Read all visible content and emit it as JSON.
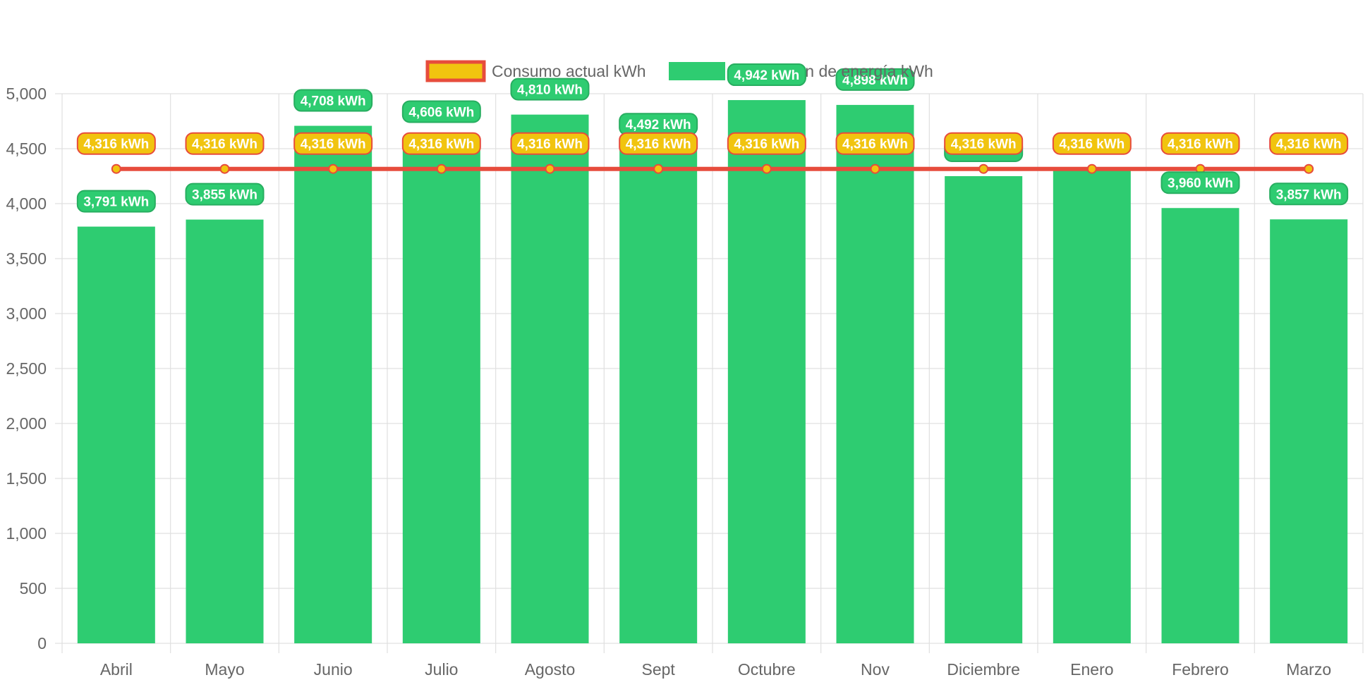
{
  "chart_data": {
    "type": "bar",
    "categories": [
      "Abril",
      "Mayo",
      "Junio",
      "Julio",
      "Agosto",
      "Sept",
      "Octubre",
      "Nov",
      "Diciembre",
      "Enero",
      "Febrero",
      "Marzo"
    ],
    "series": [
      {
        "name": "Consumo actual kWh",
        "type": "line",
        "values": [
          4316,
          4316,
          4316,
          4316,
          4316,
          4316,
          4316,
          4316,
          4316,
          4316,
          4316,
          4316
        ],
        "labels": [
          "4,316 kWh",
          "4,316 kWh",
          "4,316 kWh",
          "4,316 kWh",
          "4,316 kWh",
          "4,316 kWh",
          "4,316 kWh",
          "4,316 kWh",
          "4,316 kWh",
          "4,316 kWh",
          "4,316 kWh",
          "4,316 kWh"
        ]
      },
      {
        "name": "Producción de energía kWh",
        "type": "bar",
        "values": [
          3791,
          3855,
          4708,
          4606,
          4810,
          4492,
          4942,
          4898,
          4250,
          4316,
          3960,
          3857
        ],
        "labels": [
          "3,791 kWh",
          "3,855 kWh",
          "4,708 kWh",
          "4,606 kWh",
          "4,810 kWh",
          "4,492 kWh",
          "4,942 kWh",
          "4,898 kWh",
          "",
          "",
          "3,960 kWh",
          "3,857 kWh"
        ]
      }
    ],
    "ylim": [
      0,
      5000
    ],
    "yticks": [
      0,
      500,
      1000,
      1500,
      2000,
      2500,
      3000,
      3500,
      4000,
      4500,
      5000
    ],
    "ytick_labels": [
      "0",
      "500",
      "1,000",
      "1,500",
      "2,000",
      "2,500",
      "3,000",
      "3,500",
      "4,000",
      "4,500",
      "5,000"
    ],
    "grid": true,
    "legend_position": "top-center",
    "colors": {
      "bar": "#2ecc71",
      "bar_label_bg": "#2ecc71",
      "bar_label_border": "#27ae60",
      "line": "#e74c3c",
      "line_label_bg": "#f1c40f",
      "point_fill": "#f1c40f",
      "grid": "#e0e0e0",
      "text": "#666666"
    }
  }
}
